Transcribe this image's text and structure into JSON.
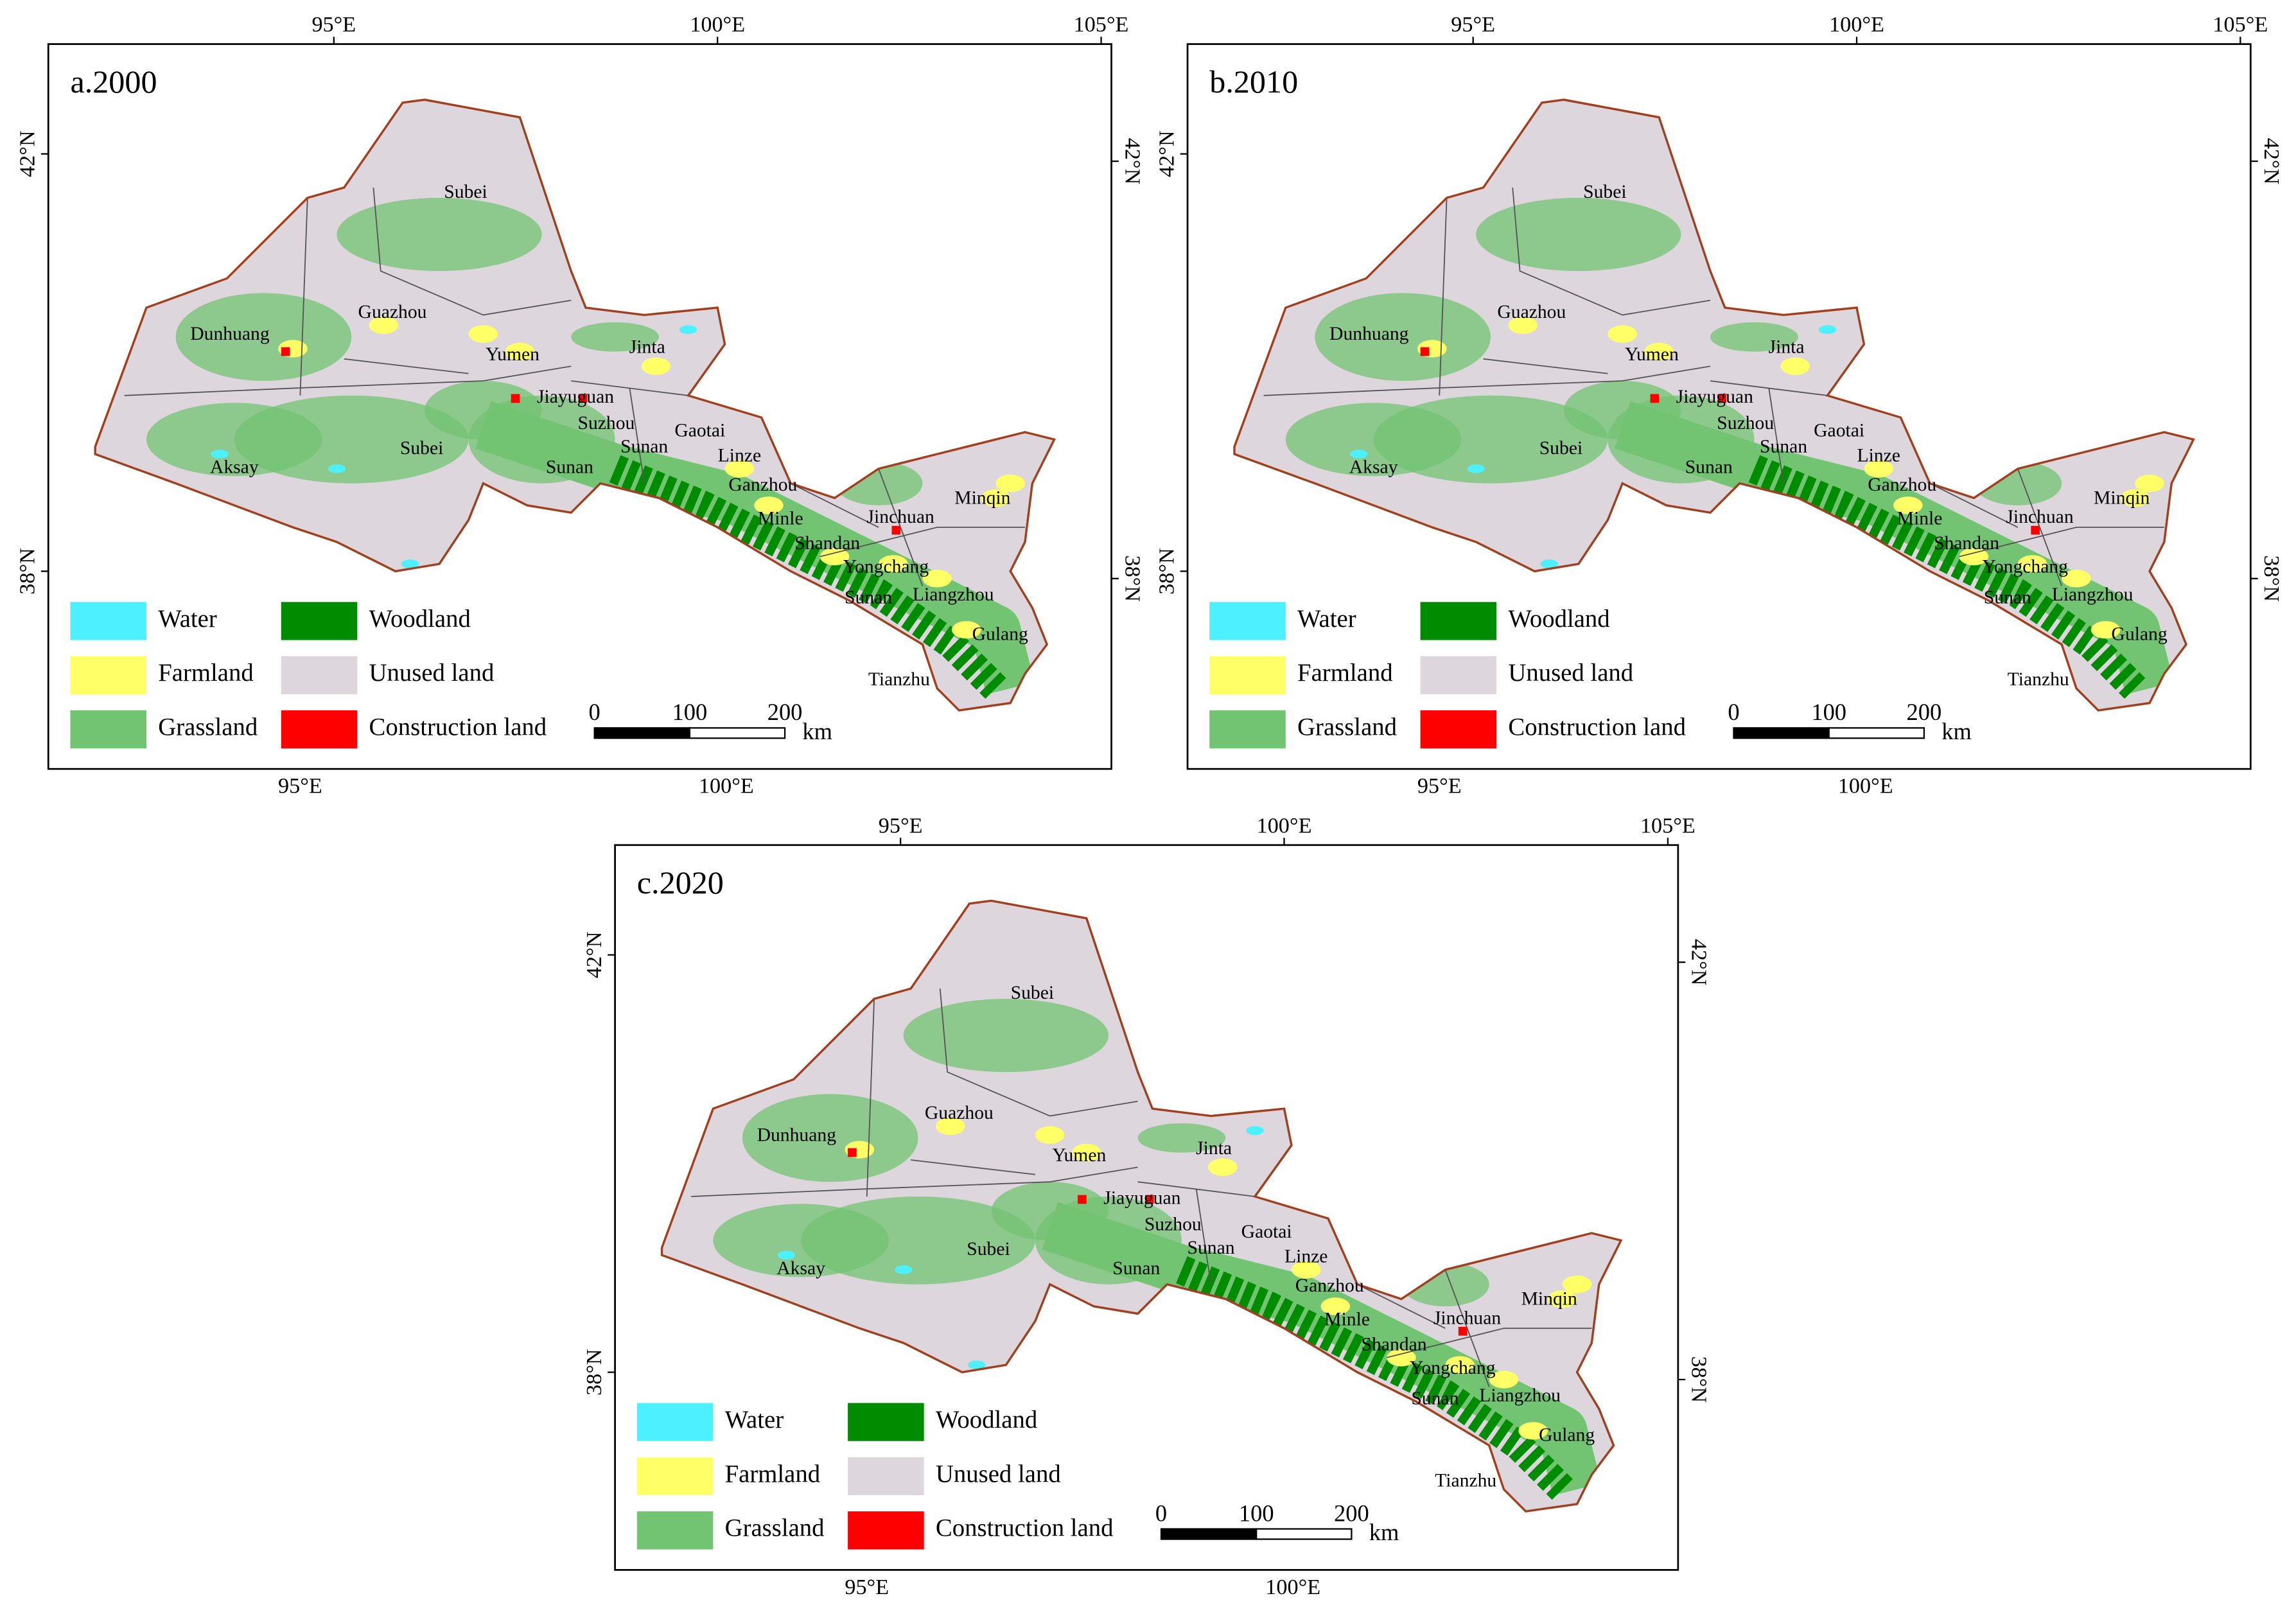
{
  "panels": [
    {
      "title": "a.2000"
    },
    {
      "title": "b.2010"
    },
    {
      "title": "c.2020"
    }
  ],
  "lon_labels_top": [
    "95°E",
    "100°E",
    "105°E"
  ],
  "lon_labels_bottom": [
    "95°E",
    "100°E"
  ],
  "lat_labels": [
    "42°N",
    "38°N"
  ],
  "places": [
    "Subei",
    "Dunhuang",
    "Guazhou",
    "Yumen",
    "Jinta",
    "Jiayuguan",
    "Suzhou",
    "Gaotai",
    "Sunan",
    "Linze",
    "Subei",
    "Aksay",
    "Sunan",
    "Ganzhou",
    "Minqin",
    "Jinchuan",
    "Minle",
    "Shandan",
    "Yongchang",
    "Sunan",
    "Liangzhou",
    "Gulang",
    "Tianzhu"
  ],
  "legend": [
    {
      "label": "Water",
      "color": "#4cf0ff"
    },
    {
      "label": "Farmland",
      "color": "#ffff66"
    },
    {
      "label": "Grassland",
      "color": "#72c372"
    },
    {
      "label": "Woodland",
      "color": "#008c00"
    },
    {
      "label": "Unused land",
      "color": "#ddd6dc"
    },
    {
      "label": "Construction land",
      "color": "#ff0000"
    }
  ],
  "scale_bar": {
    "ticks": [
      0,
      100,
      200
    ],
    "unit": "km"
  }
}
